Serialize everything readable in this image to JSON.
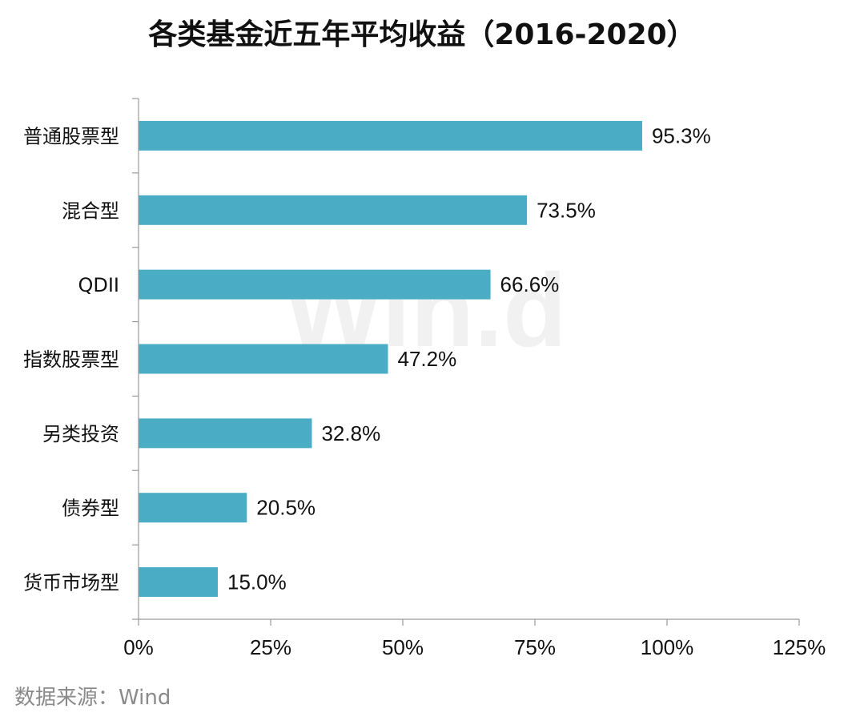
{
  "title": "各类基金近五年平均收益（2016-2020）",
  "source": "数据来源：Wind",
  "watermark": "Win.d",
  "chart_data": {
    "type": "bar",
    "orientation": "horizontal",
    "categories": [
      "普通股票型",
      "混合型",
      "QDII",
      "指数股票型",
      "另类投资",
      "债券型",
      "货币市场型"
    ],
    "values": [
      95.3,
      73.5,
      66.6,
      47.2,
      32.8,
      20.5,
      15.0
    ],
    "data_labels": [
      "95.3%",
      "73.5%",
      "66.6%",
      "47.2%",
      "32.8%",
      "20.5%",
      "15.0%"
    ],
    "xlim": [
      0,
      125
    ],
    "xticks": [
      0,
      25,
      50,
      75,
      100,
      125
    ],
    "xtick_labels": [
      "0%",
      "25%",
      "50%",
      "75%",
      "100%",
      "125%"
    ],
    "bar_color": "#4bacc6",
    "grid": false
  }
}
